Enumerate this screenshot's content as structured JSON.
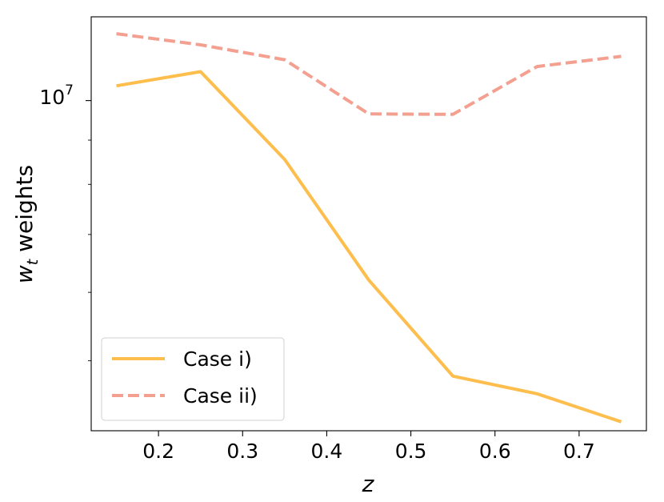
{
  "chart_data": {
    "type": "line",
    "x": [
      0.15,
      0.25,
      0.35,
      0.45,
      0.55,
      0.65,
      0.75
    ],
    "series": [
      {
        "name": "Case i)",
        "color": "#FDBE4E",
        "style": "solid",
        "values": [
          10400000,
          10800000,
          8550000,
          6200000,
          4800000,
          4580000,
          4250000
        ]
      },
      {
        "name": "Case ii)",
        "color": "#F4A090",
        "style": "dashed",
        "values": [
          11950000,
          11600000,
          11150000,
          9650000,
          9640000,
          10950000,
          11250000
        ]
      }
    ],
    "xlabel": "z",
    "ylabel": "w_t weights",
    "ylabel_main": "w",
    "ylabel_sub": "t",
    "ylabel_rest": " weights",
    "xlim": [
      0.12,
      0.78
    ],
    "ylim": [
      4150000,
      12500000
    ],
    "yscale": "log",
    "x_ticks": [
      0.2,
      0.3,
      0.4,
      0.5,
      0.6,
      0.7
    ],
    "x_tick_labels": [
      "0.2",
      "0.3",
      "0.4",
      "0.5",
      "0.6",
      "0.7"
    ],
    "y_major_ticks": [
      10000000
    ],
    "y_tick_label_base": "10",
    "y_tick_label_exp": "7",
    "y_minor_ticks": [
      5000000,
      6000000,
      7000000,
      8000000,
      9000000
    ],
    "grid": false,
    "legend_position": "lower-left"
  }
}
